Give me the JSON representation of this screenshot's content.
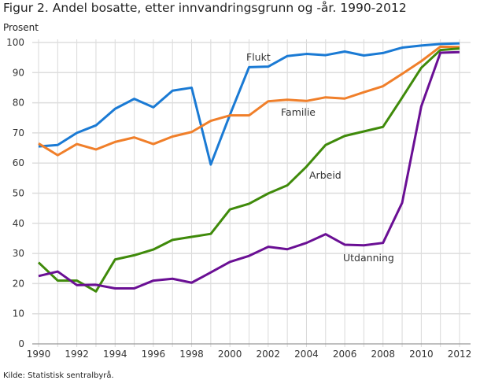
{
  "chart_data": {
    "type": "line",
    "title": "Figur 2. Andel bosatte, etter innvandringsgrunn og -år. 1990-2012",
    "ylabel": "Prosent",
    "xlabel": "",
    "source": "Kilde: Statistisk sentralbyrå.",
    "x": [
      1990,
      1991,
      1992,
      1993,
      1994,
      1995,
      1996,
      1997,
      1998,
      1999,
      2000,
      2001,
      2002,
      2003,
      2004,
      2005,
      2006,
      2007,
      2008,
      2009,
      2010,
      2011,
      2012
    ],
    "xticks": [
      "1990",
      "1992",
      "1994",
      "1996",
      "1998",
      "2000",
      "2002",
      "2004",
      "2006",
      "2008",
      "2010",
      "2012"
    ],
    "yticks": [
      "0",
      "10",
      "20",
      "30",
      "40",
      "50",
      "60",
      "70",
      "80",
      "90",
      "100"
    ],
    "ylim": [
      0,
      100
    ],
    "xlim": [
      1990,
      2012
    ],
    "grid": true,
    "legend": "inline labels",
    "series": [
      {
        "name": "Flukt",
        "color": "#1a7ad4",
        "values": [
          65.5,
          66,
          70,
          72.5,
          78,
          81.3,
          78.5,
          84,
          85,
          59.5,
          76,
          91.8,
          92,
          95.5,
          96.2,
          95.8,
          97,
          95.7,
          96.5,
          98.3,
          99,
          99.5,
          99.7
        ]
      },
      {
        "name": "Familie",
        "color": "#f07f2a",
        "values": [
          66.5,
          62.6,
          66.3,
          64.5,
          67,
          68.5,
          66.3,
          68.8,
          70.3,
          74,
          75.8,
          75.8,
          80.5,
          81,
          80.6,
          81.8,
          81.4,
          83.5,
          85.5,
          89.6,
          93.8,
          98.6,
          98.5
        ]
      },
      {
        "name": "Arbeid",
        "color": "#3f8a0a",
        "values": [
          27,
          21,
          21,
          17.4,
          28,
          29.4,
          31.3,
          34.5,
          35.5,
          36.5,
          44.6,
          46.5,
          49.9,
          52.6,
          58.8,
          66,
          69,
          70.5,
          72,
          81.7,
          91.6,
          97.5,
          98.0
        ]
      },
      {
        "name": "Utdanning",
        "color": "#6a0f94",
        "values": [
          22.5,
          24,
          19.5,
          19.6,
          18.4,
          18.4,
          21,
          21.6,
          20.3,
          23.7,
          27.2,
          29.2,
          32.2,
          31.4,
          33.5,
          36.4,
          32.9,
          32.7,
          33.5,
          46.8,
          78.8,
          96.6,
          96.8
        ]
      }
    ]
  }
}
